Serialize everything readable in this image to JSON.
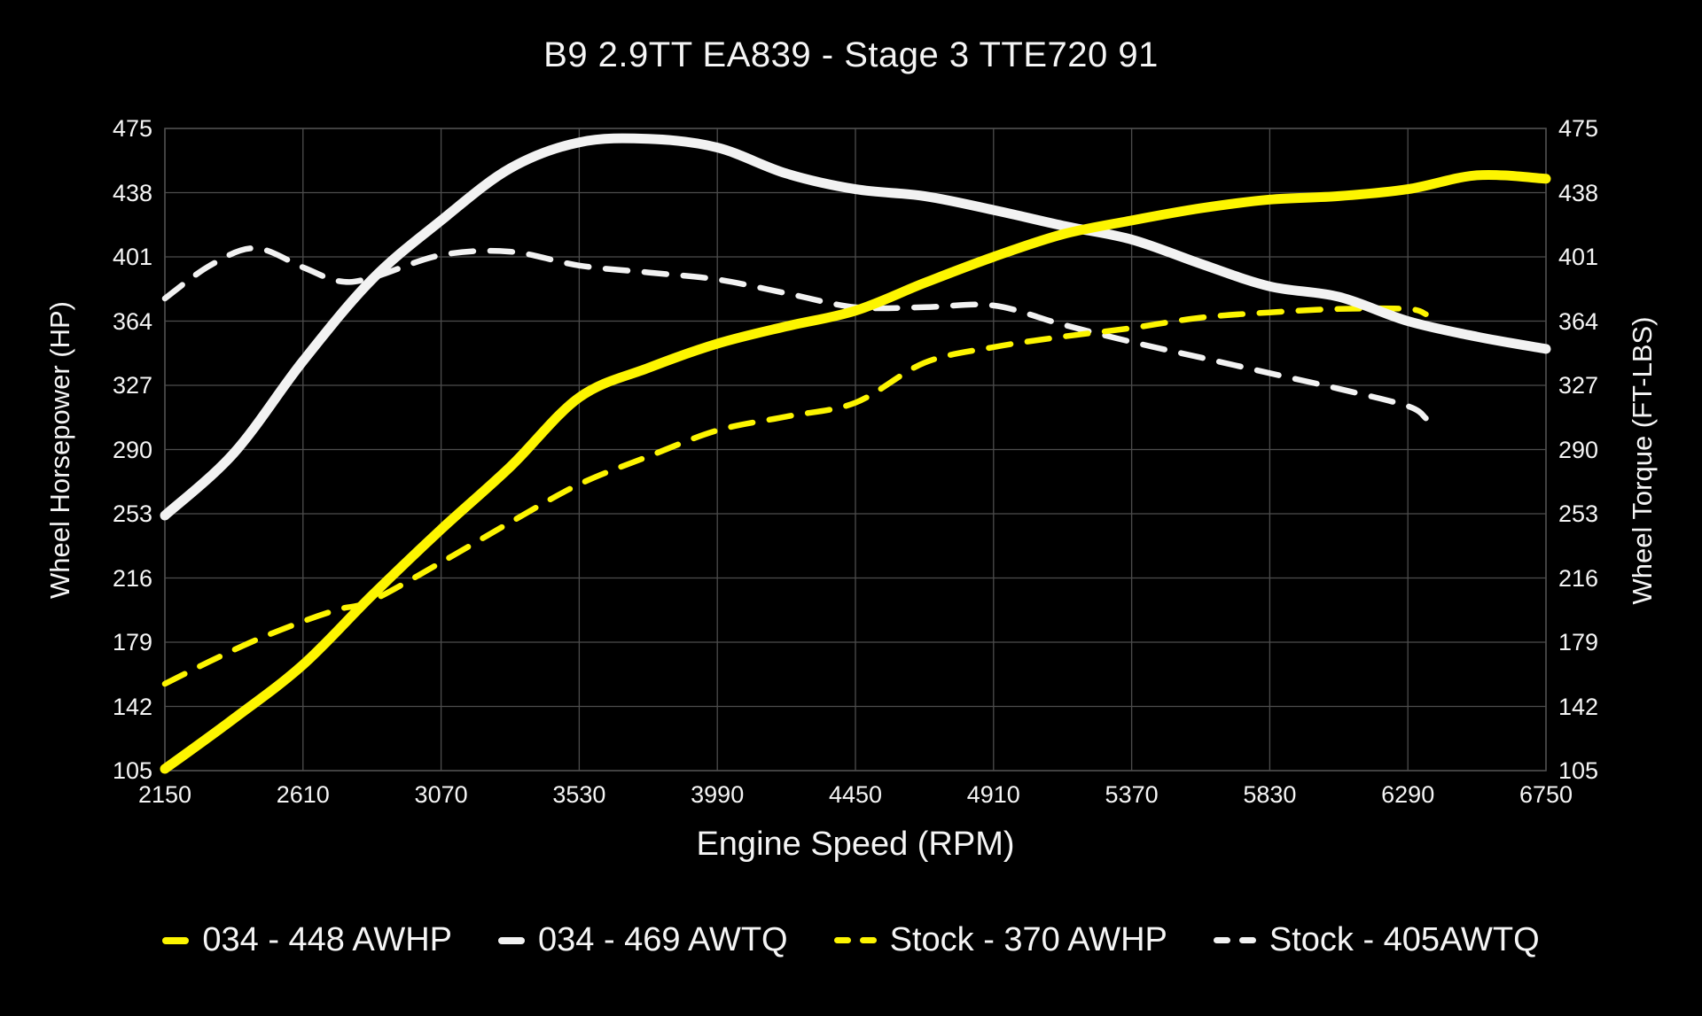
{
  "chart_data": {
    "type": "line",
    "title": "B9 2.9TT EA839 - Stage 3 TTE720 91",
    "xlabel": "Engine Speed (RPM)",
    "ylabel_left": "Wheel Horsepower (HP)",
    "ylabel_right": "Wheel Torque (FT-LBS)",
    "x_ticks": [
      2150,
      2610,
      3070,
      3530,
      3990,
      4450,
      4910,
      5370,
      5830,
      6290,
      6750
    ],
    "y_ticks": [
      105,
      142,
      179,
      216,
      253,
      290,
      327,
      364,
      401,
      438,
      475
    ],
    "xlim": [
      2150,
      6750
    ],
    "ylim": [
      105,
      475
    ],
    "grid": true,
    "legend_position": "bottom",
    "background": "#000000",
    "grid_color": "#4d4d4d",
    "text_color": "#f5f5f5",
    "series": [
      {
        "name": "stock-awtq",
        "legend_label": "Stock - 405AWTQ",
        "color": "#f2f2f2",
        "style": "dashed",
        "width": 6.5,
        "axis": "right",
        "x": [
          2150,
          2300,
          2450,
          2610,
          2730,
          2840,
          3070,
          3300,
          3530,
          3760,
          3990,
          4220,
          4450,
          4680,
          4910,
          5140,
          5370,
          5600,
          5830,
          6060,
          6290,
          6350
        ],
        "y": [
          377,
          396,
          406,
          395,
          387,
          389,
          402,
          404,
          396,
          392,
          388,
          380,
          372,
          372,
          373,
          362,
          352,
          343,
          334,
          325,
          315,
          308
        ]
      },
      {
        "name": "stock-awhp",
        "legend_label": "Stock - 370 AWHP",
        "color": "#fdf500",
        "style": "dashed",
        "width": 6.5,
        "axis": "left",
        "x": [
          2150,
          2300,
          2450,
          2610,
          2730,
          2840,
          3070,
          3300,
          3530,
          3760,
          3990,
          4220,
          4450,
          4680,
          4910,
          5140,
          5370,
          5600,
          5830,
          6060,
          6290,
          6350
        ],
        "y": [
          155,
          168,
          180,
          191,
          198,
          203,
          225,
          248,
          270,
          286,
          301,
          309,
          317,
          340,
          349,
          355,
          360,
          366,
          369,
          371,
          371,
          368
        ]
      },
      {
        "name": "034-awtq",
        "legend_label": "034 - 469 AWTQ",
        "color": "#f2f2f2",
        "style": "solid",
        "width": 11,
        "axis": "right",
        "x": [
          2150,
          2380,
          2610,
          2840,
          3070,
          3300,
          3530,
          3760,
          3990,
          4220,
          4450,
          4680,
          4910,
          5140,
          5370,
          5600,
          5830,
          6060,
          6290,
          6520,
          6750
        ],
        "y": [
          252,
          288,
          341,
          388,
          422,
          452,
          467,
          469,
          464,
          449,
          440,
          436,
          428,
          419,
          411,
          397,
          384,
          378,
          364,
          355,
          348
        ]
      },
      {
        "name": "034-awhp",
        "legend_label": "034 - 448 AWHP",
        "color": "#fdf500",
        "style": "solid",
        "width": 11,
        "axis": "left",
        "x": [
          2150,
          2380,
          2610,
          2840,
          3070,
          3300,
          3530,
          3760,
          3990,
          4220,
          4450,
          4680,
          4910,
          5140,
          5370,
          5600,
          5830,
          6060,
          6290,
          6520,
          6750
        ],
        "y": [
          106,
          135,
          166,
          206,
          244,
          280,
          320,
          337,
          351,
          361,
          370,
          386,
          401,
          414,
          422,
          429,
          434,
          436,
          440,
          448,
          446
        ]
      }
    ]
  },
  "legend_display": [
    {
      "series": 3,
      "label": "034 - 448 AWHP"
    },
    {
      "series": 2,
      "label": "034 - 469 AWTQ"
    },
    {
      "series": 1,
      "label": "Stock - 370 AWHP"
    },
    {
      "series": 0,
      "label": "Stock - 405AWTQ"
    }
  ]
}
